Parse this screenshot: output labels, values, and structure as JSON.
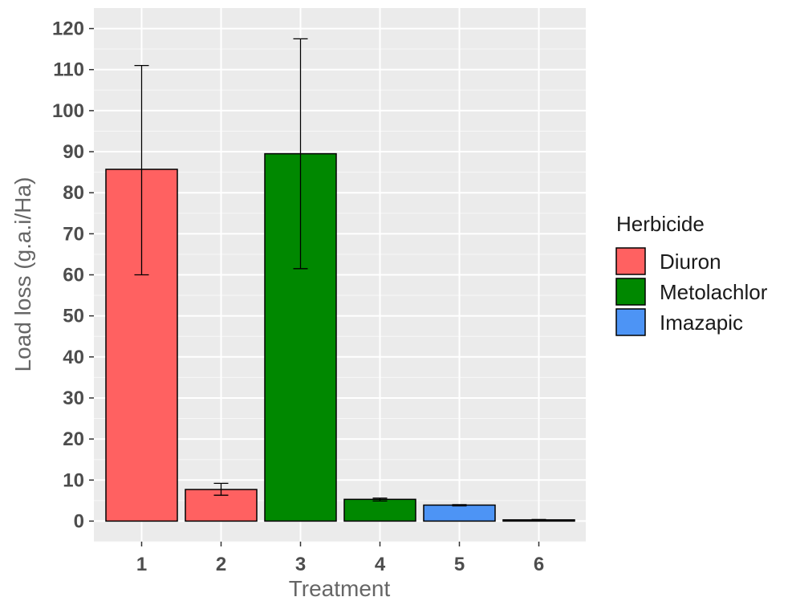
{
  "chart_data": {
    "type": "bar",
    "xlabel": "Treatment",
    "ylabel": "Load loss (g.a.i/Ha)",
    "ylim": [
      -5,
      125
    ],
    "yticks": [
      0,
      10,
      20,
      30,
      40,
      50,
      60,
      70,
      80,
      90,
      100,
      110,
      120
    ],
    "categories": [
      "1",
      "2",
      "3",
      "4",
      "5",
      "6"
    ],
    "values": [
      85.7,
      7.7,
      89.5,
      5.3,
      3.9,
      0.3
    ],
    "error_low": [
      60.0,
      6.3,
      61.5,
      4.9,
      3.7,
      0.2
    ],
    "error_high": [
      111.0,
      9.2,
      117.5,
      5.6,
      4.0,
      0.4
    ],
    "groups": [
      "Diuron",
      "Diuron",
      "Metolachlor",
      "Metolachlor",
      "Imazapic",
      "Imazapic"
    ],
    "grid": true,
    "legend": {
      "title": "Herbicide",
      "placement": "right",
      "entries": [
        {
          "name": "Diuron",
          "color": "#ff6161"
        },
        {
          "name": "Metolachlor",
          "color": "#008800"
        },
        {
          "name": "Imazapic",
          "color": "#4d94f5"
        }
      ]
    },
    "panel_background": "#ebebeb"
  }
}
